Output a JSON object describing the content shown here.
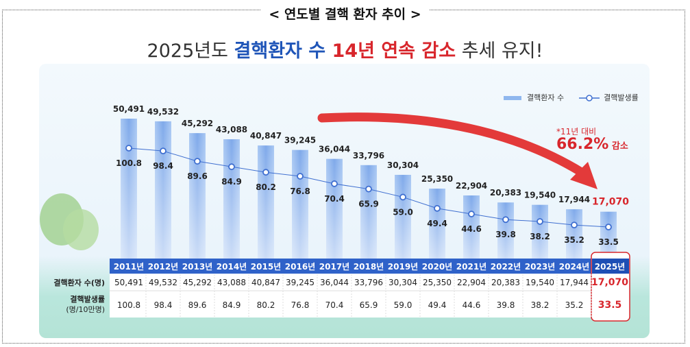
{
  "title": "< 연도별 결핵 환자 추이 >",
  "headline": {
    "p1": "2025년도 ",
    "p2": "결핵환자 수",
    "p3": " 14년 연속 감소",
    "p4": " 추세 유지!"
  },
  "annotation": {
    "note": "*11년 대비",
    "value": "66.2%",
    "suffix": " 감소"
  },
  "colors": {
    "bar": "#8fb7ee",
    "line": "#3f6fd0",
    "header": "#2f62c9",
    "highlight": "#d8262c"
  },
  "chart_data": {
    "type": "bar+line",
    "categories": [
      "2011년",
      "2012년",
      "2013년",
      "2014년",
      "2015년",
      "2016년",
      "2017년",
      "2018년",
      "2019년",
      "2020년",
      "2021년",
      "2022년",
      "2023년",
      "2024년",
      "2025년"
    ],
    "series": [
      {
        "name": "결핵환자 수",
        "type": "bar",
        "values": [
          50491,
          49532,
          45292,
          43088,
          40847,
          39245,
          36044,
          33796,
          30304,
          25350,
          22904,
          20383,
          19540,
          17944,
          17070
        ],
        "labels": [
          "50,491",
          "49,532",
          "45,292",
          "43,088",
          "40,847",
          "39,245",
          "36,044",
          "33,796",
          "30,304",
          "25,350",
          "22,904",
          "20,383",
          "19,540",
          "17,944",
          "17,070"
        ]
      },
      {
        "name": "결핵발생률",
        "type": "line",
        "values": [
          100.8,
          98.4,
          89.6,
          84.9,
          80.2,
          76.8,
          70.4,
          65.9,
          59.0,
          49.4,
          44.6,
          39.8,
          38.2,
          35.2,
          33.5
        ],
        "labels": [
          "100.8",
          "98.4",
          "89.6",
          "84.9",
          "80.2",
          "76.8",
          "70.4",
          "65.9",
          "59.0",
          "49.4",
          "44.6",
          "39.8",
          "38.2",
          "35.2",
          "33.5"
        ]
      }
    ],
    "legend": "top-right",
    "table": {
      "row1_label": "결핵환자 수(명)",
      "row2_label_1": "결핵발생률",
      "row2_label_2": "(명/10만명)"
    }
  }
}
